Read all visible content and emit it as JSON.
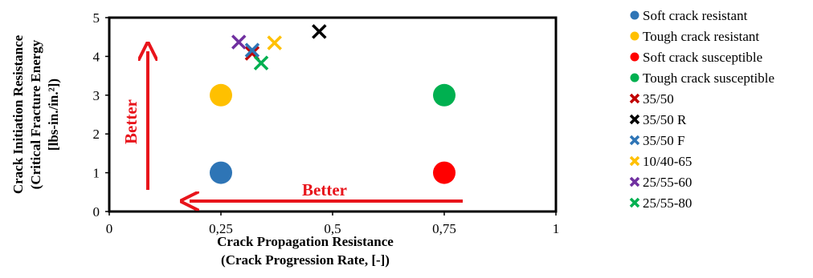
{
  "chart_data": {
    "type": "scatter",
    "xlabel": [
      "Crack Propagation Resistance",
      "(Crack Progression Rate, [-])"
    ],
    "ylabel": [
      "Crack Initiation Resistance",
      "(Critical Fracture Energy",
      "[lbs-in./in.²])"
    ],
    "xlim": [
      0,
      1
    ],
    "ylim": [
      0,
      5
    ],
    "x_ticks": [
      0,
      0.25,
      0.5,
      0.75,
      1
    ],
    "x_tick_labels": [
      "0",
      "0,25",
      "0,5",
      "0,75",
      "1"
    ],
    "y_ticks": [
      0,
      1,
      2,
      3,
      4,
      5
    ],
    "y_tick_labels": [
      "0",
      "1",
      "2",
      "3",
      "4",
      "5"
    ],
    "grid": false,
    "legend_position": "right",
    "series": [
      {
        "name": "Soft crack resistant",
        "marker": "circle",
        "color": "#2e75b6",
        "points": [
          [
            0.25,
            1
          ]
        ]
      },
      {
        "name": "Tough crack resistant",
        "marker": "circle",
        "color": "#ffc000",
        "points": [
          [
            0.25,
            3
          ]
        ]
      },
      {
        "name": "Soft crack susceptible",
        "marker": "circle",
        "color": "#ff0000",
        "points": [
          [
            0.75,
            1
          ]
        ]
      },
      {
        "name": "Tough crack susceptible",
        "marker": "circle",
        "color": "#00b050",
        "points": [
          [
            0.75,
            3
          ]
        ]
      },
      {
        "name": "35/50",
        "marker": "cross",
        "color": "#c00000",
        "points": [
          [
            0.32,
            4.08
          ]
        ]
      },
      {
        "name": "35/50 R",
        "marker": "cross",
        "color": "#000000",
        "points": [
          [
            0.47,
            4.64
          ]
        ]
      },
      {
        "name": "35/50 F",
        "marker": "cross",
        "color": "#2e75b6",
        "points": [
          [
            0.32,
            4.16
          ]
        ]
      },
      {
        "name": "10/40-65",
        "marker": "cross",
        "color": "#ffc000",
        "points": [
          [
            0.37,
            4.35
          ]
        ]
      },
      {
        "name": "25/55-60",
        "marker": "cross",
        "color": "#7030a0",
        "points": [
          [
            0.29,
            4.37
          ]
        ]
      },
      {
        "name": "25/55-80",
        "marker": "cross",
        "color": "#00b050",
        "points": [
          [
            0.34,
            3.83
          ]
        ]
      }
    ],
    "annotations": [
      {
        "text": "Better",
        "direction": "vertical",
        "color": "#e8141b"
      },
      {
        "text": "Better",
        "direction": "horizontal",
        "color": "#e8141b"
      }
    ]
  }
}
